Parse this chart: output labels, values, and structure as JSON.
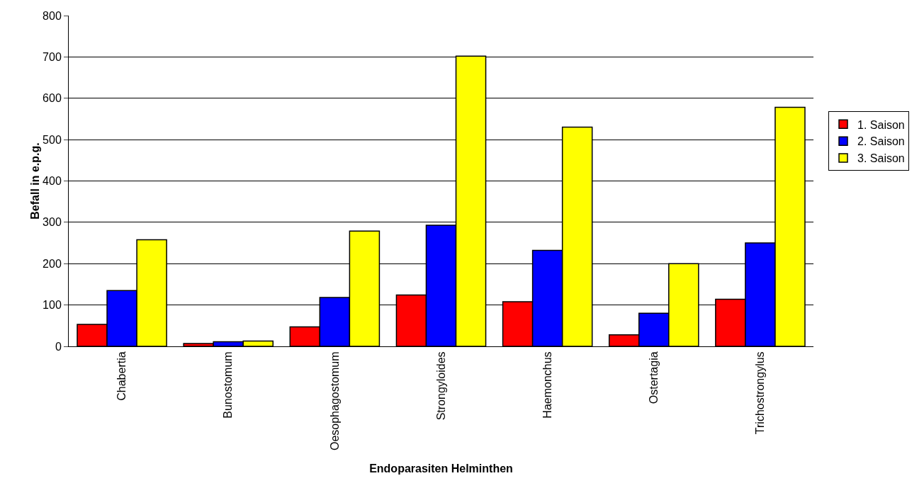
{
  "chart_data": {
    "type": "bar",
    "xlabel": "Endoparasiten Helminthen",
    "ylabel": "Befall in e.p.g.",
    "categories": [
      "Chabertia",
      "Bunostomum",
      "Oesophagostomum",
      "Strongyloides",
      "Haemonchus",
      "Ostertagia",
      "Trichostrongylus"
    ],
    "series": [
      {
        "name": "1. Saison",
        "color": "#ff0000",
        "values": [
          53,
          7,
          47,
          124,
          108,
          28,
          114
        ]
      },
      {
        "name": "2. Saison",
        "color": "#0000ff",
        "values": [
          135,
          11,
          118,
          293,
          232,
          80,
          250
        ]
      },
      {
        "name": "3. Saison",
        "color": "#ffff00",
        "values": [
          258,
          13,
          279,
          702,
          530,
          200,
          578
        ]
      }
    ],
    "ylim": [
      0,
      800
    ],
    "yticks": [
      0,
      100,
      200,
      300,
      400,
      500,
      600,
      700,
      800
    ],
    "grid": "y",
    "legend": "right"
  }
}
